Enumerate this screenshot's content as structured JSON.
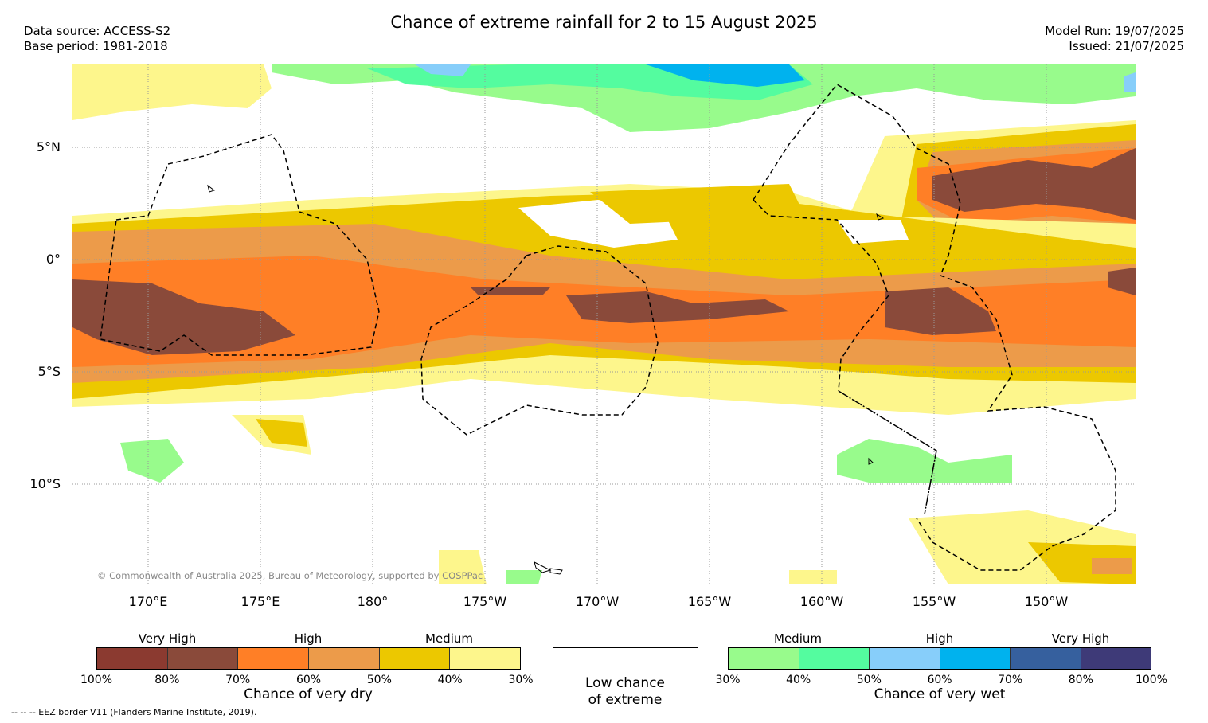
{
  "title": "Chance of extreme rainfall for 2 to 15 August 2025",
  "data_source": "Data source: ACCESS-S2",
  "base_period": "Base period: 1981-2018",
  "model_run": "Model Run: 19/07/2025",
  "issued": "Issued: 21/07/2025",
  "copyright": "© Commonwealth of Australia 2025, Bureau of Meteorology, supported by COSPPac",
  "eez_note": "-- -- -- EEZ border V11 (Flanders Marine Institute, 2019).",
  "lat_ticks": [
    "5°N",
    "0°",
    "5°S",
    "10°S"
  ],
  "lon_ticks": [
    "170°E",
    "175°E",
    "180°",
    "175°W",
    "170°W",
    "165°W",
    "160°W",
    "155°W",
    "150°W"
  ],
  "legend": {
    "dry": {
      "caption": "Chance of very dry",
      "groups": [
        "Very High",
        "High",
        "Medium"
      ],
      "labels": [
        "100%",
        "80%",
        "70%",
        "60%",
        "50%",
        "40%",
        "30%"
      ],
      "colors": [
        "#8b3a30",
        "#8a4a3a",
        "#ff7f26",
        "#ec9b4a",
        "#ecc800",
        "#fdf68c"
      ]
    },
    "neutral": {
      "caption_line1": "Low chance",
      "caption_line2": "of extreme"
    },
    "wet": {
      "caption": "Chance of very wet",
      "groups": [
        "Medium",
        "High",
        "Very High"
      ],
      "labels": [
        "30%",
        "40%",
        "50%",
        "60%",
        "70%",
        "80%",
        "100%"
      ],
      "colors": [
        "#98fb8c",
        "#54fc9f",
        "#87cefa",
        "#00b2ee",
        "#36609e",
        "#3e3a78"
      ]
    }
  }
}
